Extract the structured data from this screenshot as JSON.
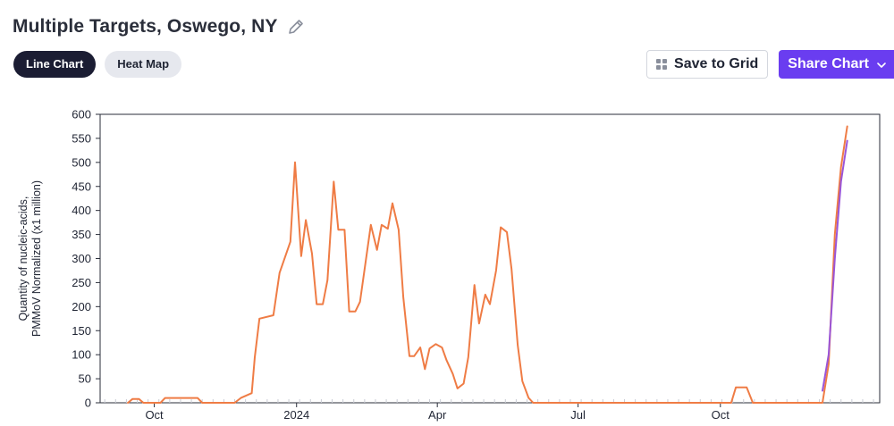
{
  "header": {
    "title": "Multiple Targets, Oswego, NY",
    "edit_icon": "pencil-icon"
  },
  "view_toggle": {
    "options": [
      {
        "label": "Line Chart",
        "active": true
      },
      {
        "label": "Heat Map",
        "active": false
      }
    ]
  },
  "actions": {
    "save_label": "Save to Grid",
    "save_icon": "grid-icon",
    "share_label": "Share Chart",
    "share_icon": "chevron-down-icon",
    "share_color": "#6a3df0"
  },
  "chart_data": {
    "type": "line",
    "ylabel_line1": "Quantity of nucleic-acids,",
    "ylabel_line2": "PMMoV Normalized (x1 million)",
    "ylim": [
      0,
      600
    ],
    "yticks": [
      0,
      50,
      100,
      150,
      200,
      250,
      300,
      350,
      400,
      450,
      500,
      550,
      600
    ],
    "xlim": [
      "2023-08-27",
      "2025-01-12"
    ],
    "xticks": [
      {
        "date": "2023-10-01",
        "label": "Oct"
      },
      {
        "date": "2024-01-01",
        "label": "2024"
      },
      {
        "date": "2024-04-01",
        "label": "Apr"
      },
      {
        "date": "2024-07-01",
        "label": "Jul"
      },
      {
        "date": "2024-10-01",
        "label": "Oct"
      }
    ],
    "grid": false,
    "series": [
      {
        "color": "#ef7c45",
        "points": [
          [
            "2023-09-14",
            0
          ],
          [
            "2023-09-17",
            8
          ],
          [
            "2023-09-21",
            8
          ],
          [
            "2023-09-24",
            0
          ],
          [
            "2023-10-05",
            0
          ],
          [
            "2023-10-08",
            10
          ],
          [
            "2023-10-29",
            10
          ],
          [
            "2023-11-01",
            0
          ],
          [
            "2023-11-22",
            0
          ],
          [
            "2023-11-26",
            10
          ],
          [
            "2023-12-03",
            20
          ],
          [
            "2023-12-05",
            95
          ],
          [
            "2023-12-08",
            175
          ],
          [
            "2023-12-17",
            182
          ],
          [
            "2023-12-21",
            270
          ],
          [
            "2023-12-28",
            335
          ],
          [
            "2023-12-31",
            500
          ],
          [
            "2024-01-04",
            305
          ],
          [
            "2024-01-07",
            380
          ],
          [
            "2024-01-11",
            310
          ],
          [
            "2024-01-14",
            205
          ],
          [
            "2024-01-18",
            205
          ],
          [
            "2024-01-21",
            255
          ],
          [
            "2024-01-25",
            460
          ],
          [
            "2024-01-28",
            360
          ],
          [
            "2024-02-01",
            360
          ],
          [
            "2024-02-04",
            190
          ],
          [
            "2024-02-08",
            190
          ],
          [
            "2024-02-11",
            210
          ],
          [
            "2024-02-18",
            370
          ],
          [
            "2024-02-22",
            318
          ],
          [
            "2024-02-25",
            370
          ],
          [
            "2024-02-29",
            362
          ],
          [
            "2024-03-03",
            415
          ],
          [
            "2024-03-07",
            360
          ],
          [
            "2024-03-10",
            220
          ],
          [
            "2024-03-14",
            97
          ],
          [
            "2024-03-17",
            97
          ],
          [
            "2024-03-21",
            115
          ],
          [
            "2024-03-24",
            70
          ],
          [
            "2024-03-27",
            113
          ],
          [
            "2024-03-31",
            122
          ],
          [
            "2024-04-04",
            115
          ],
          [
            "2024-04-07",
            88
          ],
          [
            "2024-04-11",
            60
          ],
          [
            "2024-04-14",
            30
          ],
          [
            "2024-04-18",
            40
          ],
          [
            "2024-04-21",
            95
          ],
          [
            "2024-04-25",
            245
          ],
          [
            "2024-04-28",
            165
          ],
          [
            "2024-05-02",
            225
          ],
          [
            "2024-05-05",
            205
          ],
          [
            "2024-05-09",
            275
          ],
          [
            "2024-05-12",
            365
          ],
          [
            "2024-05-16",
            355
          ],
          [
            "2024-05-19",
            278
          ],
          [
            "2024-05-23",
            120
          ],
          [
            "2024-05-26",
            45
          ],
          [
            "2024-05-30",
            10
          ],
          [
            "2024-06-02",
            0
          ],
          [
            "2024-10-08",
            0
          ],
          [
            "2024-10-11",
            32
          ],
          [
            "2024-10-18",
            32
          ],
          [
            "2024-10-22",
            0
          ],
          [
            "2024-12-06",
            0
          ],
          [
            "2024-12-10",
            80
          ],
          [
            "2024-12-14",
            350
          ],
          [
            "2024-12-18",
            490
          ],
          [
            "2024-12-22",
            575
          ]
        ]
      },
      {
        "color": "#9a55d8",
        "points": [
          [
            "2024-12-06",
            25
          ],
          [
            "2024-12-10",
            100
          ],
          [
            "2024-12-14",
            300
          ],
          [
            "2024-12-18",
            460
          ],
          [
            "2024-12-22",
            545
          ]
        ]
      }
    ]
  }
}
